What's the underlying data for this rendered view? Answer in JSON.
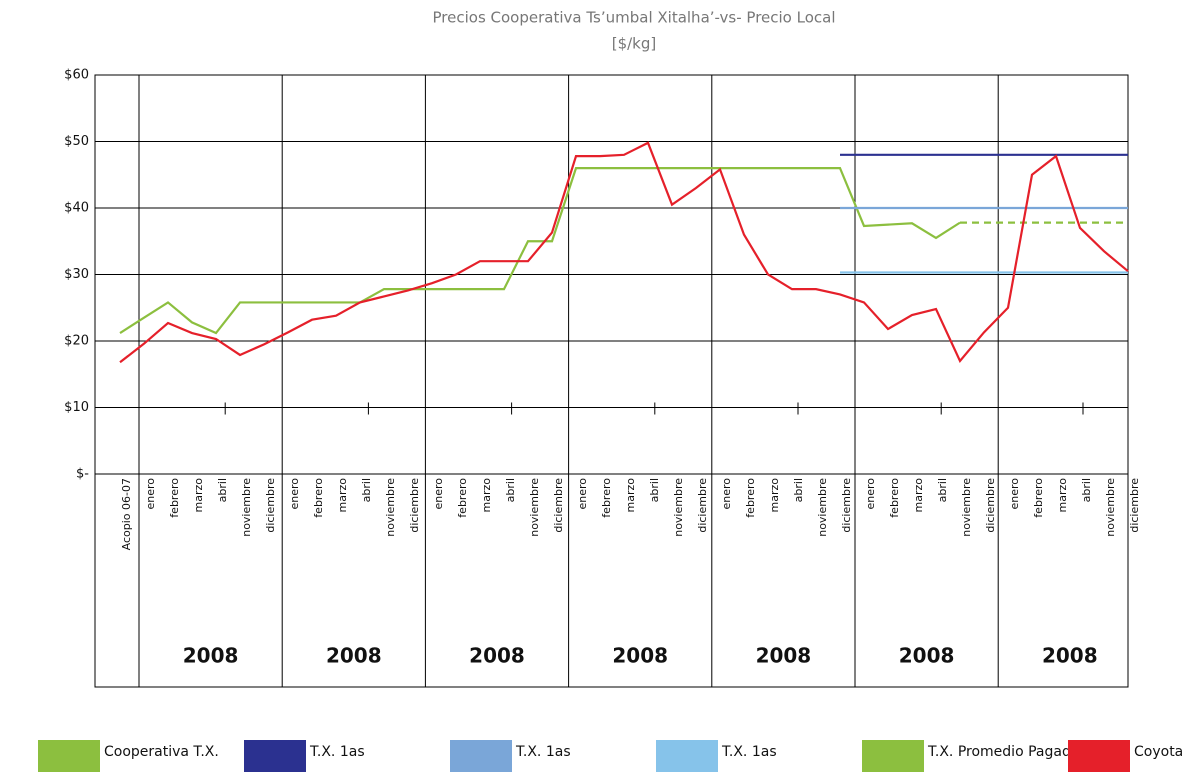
{
  "chart_data": {
    "type": "line",
    "title": "Precios Cooperativa Ts’umbal Xitalha’-vs- Precio Local",
    "subtitle": "[$/kg]",
    "categories": [
      "Acopio 06-07",
      "enero",
      "febrero",
      "marzo",
      "abril",
      "noviembre",
      "diciembre",
      "enero",
      "febrero",
      "marzo",
      "abril",
      "noviembre",
      "diciembre",
      "enero",
      "febrero",
      "marzo",
      "abril",
      "noviembre",
      "diciembre",
      "enero",
      "febrero",
      "marzo",
      "abril",
      "noviembre",
      "diciembre",
      "enero",
      "febrero",
      "marzo",
      "abril",
      "noviembre",
      "diciembre",
      "enero",
      "febrero",
      "marzo",
      "abril",
      "noviembre",
      "diciembre",
      "enero",
      "febrero",
      "marzo",
      "abril",
      "noviembre",
      "diciembre"
    ],
    "group_labels": [
      "2008",
      "2008",
      "2008",
      "2008",
      "2008",
      "2008",
      "2008"
    ],
    "ylim": [
      0,
      60
    ],
    "yticks": [
      {
        "value": 0,
        "label": "$-"
      },
      {
        "value": 10,
        "label": "$10"
      },
      {
        "value": 20,
        "label": "$20"
      },
      {
        "value": 30,
        "label": "$30"
      },
      {
        "value": 40,
        "label": "$40"
      },
      {
        "value": 50,
        "label": "$50"
      },
      {
        "value": 60,
        "label": "$60"
      }
    ],
    "grid": true,
    "legend": "bottom",
    "series": [
      {
        "name": "Cooperativa T.X.",
        "color": "#8cbf3f",
        "values": [
          21.2,
          23.5,
          25.8,
          22.8,
          21.2,
          25.8,
          25.8,
          25.8,
          25.8,
          25.8,
          25.8,
          27.8,
          27.8,
          27.8,
          27.8,
          27.8,
          27.8,
          35,
          35,
          46,
          46,
          46,
          46,
          46,
          46,
          46,
          46,
          46,
          46,
          46,
          46,
          37.3,
          37.5,
          37.7,
          35.5,
          37.8,
          null,
          null,
          null,
          null,
          null,
          null,
          null
        ]
      },
      {
        "name": "T.X. 1as",
        "color": "#2b3190",
        "values": [
          null,
          null,
          null,
          null,
          null,
          null,
          null,
          null,
          null,
          null,
          null,
          null,
          null,
          null,
          null,
          null,
          null,
          null,
          null,
          null,
          null,
          null,
          null,
          null,
          null,
          null,
          null,
          null,
          null,
          null,
          48,
          48,
          48,
          48,
          48,
          48,
          48,
          48,
          48,
          48,
          48,
          48,
          48
        ]
      },
      {
        "name": "T.X. 1as",
        "color": "#7aa6d8",
        "values": [
          null,
          null,
          null,
          null,
          null,
          null,
          null,
          null,
          null,
          null,
          null,
          null,
          null,
          null,
          null,
          null,
          null,
          null,
          null,
          null,
          null,
          null,
          null,
          null,
          null,
          null,
          null,
          null,
          null,
          null,
          40,
          40,
          40,
          40,
          40,
          40,
          40,
          40,
          40,
          40,
          40,
          40,
          40
        ]
      },
      {
        "name": "T.X. 1as",
        "color": "#86c3ea",
        "values": [
          null,
          null,
          null,
          null,
          null,
          null,
          null,
          null,
          null,
          null,
          null,
          null,
          null,
          null,
          null,
          null,
          null,
          null,
          null,
          null,
          null,
          null,
          null,
          null,
          null,
          null,
          null,
          null,
          null,
          null,
          30.3,
          30.3,
          30.3,
          30.3,
          30.3,
          30.3,
          30.3,
          30.3,
          30.3,
          30.3,
          30.3,
          30.3,
          30.3
        ]
      },
      {
        "name": "T.X. Promedio Pagado",
        "color": "#8cbf3f",
        "dash": "dashed",
        "values": [
          null,
          null,
          null,
          null,
          null,
          null,
          null,
          null,
          null,
          null,
          null,
          null,
          null,
          null,
          null,
          null,
          null,
          null,
          null,
          null,
          null,
          null,
          null,
          null,
          null,
          null,
          null,
          null,
          null,
          null,
          null,
          null,
          null,
          null,
          null,
          37.8,
          37.8,
          37.8,
          37.8,
          37.8,
          37.8,
          37.8,
          37.8
        ]
      },
      {
        "name": "Coyotaje",
        "color": "#e5202a",
        "values": [
          16.8,
          19.6,
          22.7,
          21.2,
          20.3,
          17.9,
          19.5,
          21.3,
          23.2,
          23.8,
          25.8,
          26.7,
          27.6,
          28.7,
          30,
          32,
          32,
          32,
          36.3,
          47.8,
          47.8,
          48,
          49.8,
          40.5,
          43,
          45.8,
          36,
          30,
          27.8,
          27.8,
          27,
          25.8,
          21.8,
          23.9,
          24.8,
          17,
          21.3,
          25,
          45,
          47.8,
          37,
          33.5,
          30.5
        ]
      }
    ]
  }
}
